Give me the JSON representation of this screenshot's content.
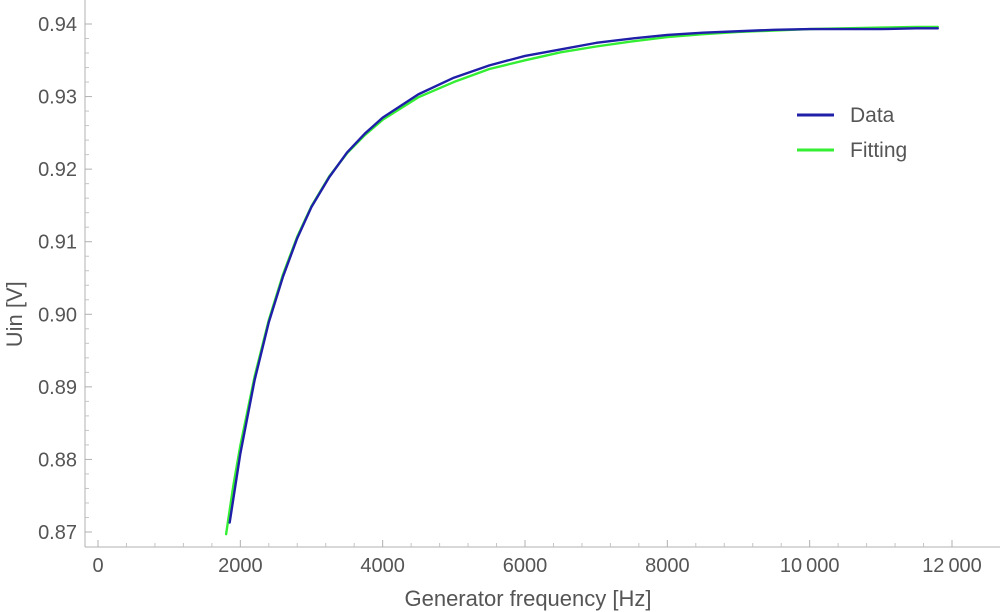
{
  "chart_data": {
    "type": "line",
    "title": "",
    "xlabel": "Generator frequency [Hz]",
    "ylabel": "Uin [V]",
    "xlim": [
      0,
      12000
    ],
    "ylim": [
      0.87,
      0.94
    ],
    "x_ticks": [
      0,
      2000,
      4000,
      6000,
      8000,
      10000,
      12000
    ],
    "x_tick_labels": [
      "0",
      "2000",
      "4000",
      "6000",
      "8000",
      "10 000",
      "12 000"
    ],
    "y_ticks": [
      0.87,
      0.88,
      0.89,
      0.9,
      0.91,
      0.92,
      0.93,
      0.94
    ],
    "y_tick_labels": [
      "0.87",
      "0.88",
      "0.89",
      "0.90",
      "0.91",
      "0.92",
      "0.93",
      "0.94"
    ],
    "grid": false,
    "legend_position": "right",
    "series": [
      {
        "name": "Data",
        "color": "#1f1fa8",
        "x": [
          1850,
          2000,
          2200,
          2400,
          2600,
          2800,
          3000,
          3250,
          3500,
          3750,
          4000,
          4500,
          5000,
          5500,
          6000,
          6500,
          7000,
          7500,
          8000,
          8500,
          9000,
          9500,
          10000,
          10500,
          11000,
          11500,
          11800
        ],
        "y": [
          0.8713,
          0.8808,
          0.8909,
          0.8989,
          0.9052,
          0.9105,
          0.9148,
          0.9189,
          0.9223,
          0.9249,
          0.9271,
          0.9303,
          0.9326,
          0.9343,
          0.9356,
          0.9365,
          0.9374,
          0.938,
          0.9385,
          0.9388,
          0.939,
          0.9392,
          0.9393,
          0.9393,
          0.9393,
          0.9394,
          0.9394
        ]
      },
      {
        "name": "Fitting",
        "color": "#33ee33",
        "x": [
          1800,
          1900,
          2000,
          2200,
          2400,
          2600,
          2800,
          3000,
          3250,
          3500,
          3750,
          4000,
          4500,
          5000,
          5500,
          6000,
          6500,
          7000,
          7500,
          8000,
          8500,
          9000,
          9500,
          10000,
          10500,
          11000,
          11500,
          11800
        ],
        "y": [
          0.8697,
          0.8763,
          0.8819,
          0.8914,
          0.8992,
          0.9055,
          0.9107,
          0.9149,
          0.919,
          0.9222,
          0.9247,
          0.9268,
          0.9299,
          0.932,
          0.9338,
          0.935,
          0.9361,
          0.9369,
          0.9376,
          0.9382,
          0.9386,
          0.9389,
          0.9391,
          0.9393,
          0.9394,
          0.9395,
          0.9396,
          0.9396
        ]
      }
    ]
  }
}
